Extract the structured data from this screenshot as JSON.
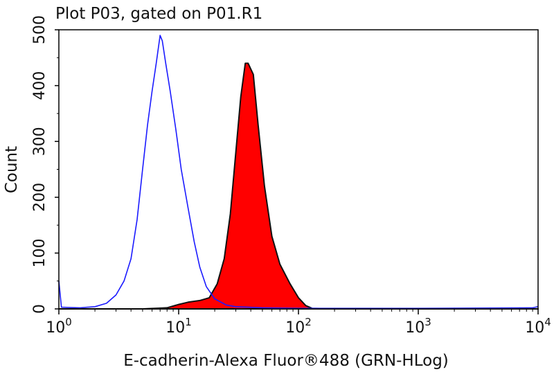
{
  "chart_data": {
    "type": "area",
    "title": "Plot P03, gated on P01.R1",
    "xlabel": "E-cadherin-Alexa Fluor®488 (GRN-HLog)",
    "ylabel": "Count",
    "x_scale": "log",
    "xlim": [
      1,
      10000
    ],
    "ylim": [
      0,
      500
    ],
    "x_ticks": [
      {
        "base": "10",
        "exp": "0",
        "value": 1
      },
      {
        "base": "10",
        "exp": "1",
        "value": 10
      },
      {
        "base": "10",
        "exp": "2",
        "value": 100
      },
      {
        "base": "10",
        "exp": "3",
        "value": 1000
      },
      {
        "base": "10",
        "exp": "4",
        "value": 10000
      }
    ],
    "y_ticks": [
      "0",
      "100",
      "200",
      "300",
      "400",
      "500"
    ],
    "grid": false,
    "series": [
      {
        "style": "outline",
        "color": "#1a1aff",
        "points": [
          [
            1.0,
            50
          ],
          [
            1.05,
            3
          ],
          [
            1.5,
            2
          ],
          [
            2.0,
            4
          ],
          [
            2.5,
            10
          ],
          [
            3.0,
            25
          ],
          [
            3.5,
            50
          ],
          [
            4.0,
            90
          ],
          [
            4.5,
            160
          ],
          [
            5.0,
            250
          ],
          [
            5.5,
            330
          ],
          [
            6.0,
            390
          ],
          [
            6.5,
            440
          ],
          [
            7.0,
            490
          ],
          [
            7.3,
            480
          ],
          [
            7.8,
            440
          ],
          [
            8.5,
            390
          ],
          [
            9.5,
            320
          ],
          [
            10.5,
            250
          ],
          [
            12.0,
            180
          ],
          [
            13.5,
            120
          ],
          [
            15.0,
            75
          ],
          [
            17.0,
            40
          ],
          [
            20.0,
            18
          ],
          [
            25.0,
            7
          ],
          [
            30.0,
            4
          ],
          [
            50.0,
            2
          ],
          [
            100.0,
            1
          ],
          [
            1000.0,
            1
          ],
          [
            9000.0,
            2
          ],
          [
            10000.0,
            4
          ]
        ]
      },
      {
        "style": "filled",
        "color": "#ff0000",
        "edge": "#111111",
        "points": [
          [
            1.0,
            0
          ],
          [
            5.0,
            0
          ],
          [
            8.0,
            2
          ],
          [
            10.0,
            8
          ],
          [
            12.0,
            12
          ],
          [
            15.0,
            15
          ],
          [
            18.0,
            20
          ],
          [
            21.0,
            45
          ],
          [
            24.0,
            90
          ],
          [
            27.0,
            170
          ],
          [
            30.0,
            280
          ],
          [
            33.0,
            380
          ],
          [
            36.0,
            440
          ],
          [
            38.0,
            440
          ],
          [
            42.0,
            420
          ],
          [
            46.0,
            330
          ],
          [
            52.0,
            220
          ],
          [
            60.0,
            130
          ],
          [
            70.0,
            80
          ],
          [
            85.0,
            45
          ],
          [
            100.0,
            20
          ],
          [
            115.0,
            6
          ],
          [
            130.0,
            1
          ],
          [
            200.0,
            0
          ],
          [
            10000.0,
            0
          ]
        ]
      }
    ]
  }
}
